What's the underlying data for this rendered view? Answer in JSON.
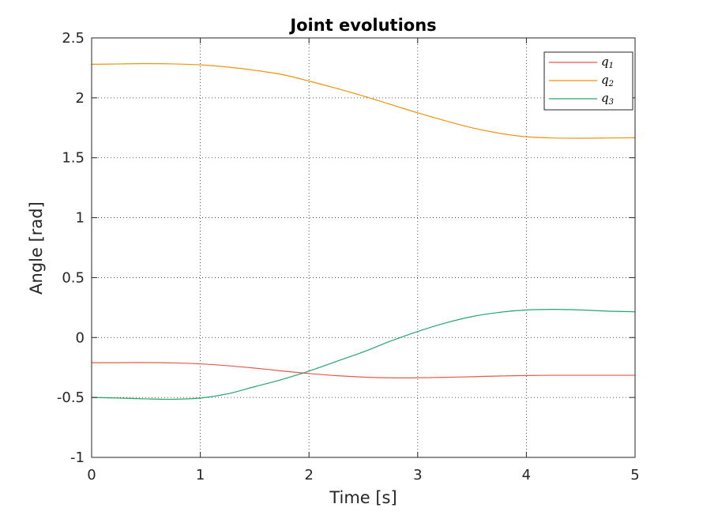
{
  "chart_data": {
    "type": "line",
    "title": "Joint evolutions",
    "xlabel": "Time [s]",
    "ylabel": "Angle [rad]",
    "xlim": [
      0,
      5
    ],
    "ylim": [
      -1,
      2.5
    ],
    "xticks": [
      0,
      1,
      2,
      3,
      4,
      5
    ],
    "yticks": [
      -1,
      -0.5,
      0,
      0.5,
      1,
      1.5,
      2,
      2.5
    ],
    "xtick_labels": [
      "0",
      "1",
      "2",
      "3",
      "4",
      "5"
    ],
    "ytick_labels": [
      "-1",
      "-0.5",
      "0",
      "0.5",
      "1",
      "1.5",
      "2",
      "2.5"
    ],
    "grid": true,
    "legend_position": "top-right",
    "series": [
      {
        "name": "q1",
        "color": "#e8584a",
        "x": [
          0,
          0.25,
          0.5,
          0.75,
          1,
          1.25,
          1.5,
          1.75,
          2,
          2.25,
          2.5,
          2.75,
          3,
          3.25,
          3.5,
          3.75,
          4,
          4.25,
          4.5,
          4.75,
          5
        ],
        "y": [
          -0.21,
          -0.21,
          -0.209,
          -0.212,
          -0.22,
          -0.235,
          -0.255,
          -0.279,
          -0.3,
          -0.318,
          -0.33,
          -0.336,
          -0.336,
          -0.332,
          -0.327,
          -0.321,
          -0.317,
          -0.315,
          -0.315,
          -0.315,
          -0.315
        ]
      },
      {
        "name": "q2",
        "color": "#f2920c",
        "x": [
          0,
          0.25,
          0.5,
          0.75,
          1,
          1.25,
          1.5,
          1.75,
          2,
          2.25,
          2.5,
          2.75,
          3,
          3.25,
          3.5,
          3.75,
          4,
          4.25,
          4.5,
          4.75,
          5
        ],
        "y": [
          2.28,
          2.283,
          2.286,
          2.283,
          2.275,
          2.257,
          2.23,
          2.195,
          2.14,
          2.08,
          2.015,
          1.945,
          1.875,
          1.81,
          1.75,
          1.705,
          1.675,
          1.665,
          1.663,
          1.665,
          1.667
        ]
      },
      {
        "name": "q3",
        "color": "#24a66a",
        "x": [
          0,
          0.25,
          0.5,
          0.75,
          1,
          1.25,
          1.5,
          1.75,
          2,
          2.25,
          2.5,
          2.75,
          3,
          3.25,
          3.5,
          3.75,
          4,
          4.25,
          4.5,
          4.75,
          5
        ],
        "y": [
          -0.5,
          -0.505,
          -0.512,
          -0.515,
          -0.505,
          -0.47,
          -0.41,
          -0.35,
          -0.28,
          -0.2,
          -0.12,
          -0.03,
          0.05,
          0.12,
          0.175,
          0.21,
          0.23,
          0.235,
          0.23,
          0.22,
          0.215
        ]
      }
    ]
  }
}
